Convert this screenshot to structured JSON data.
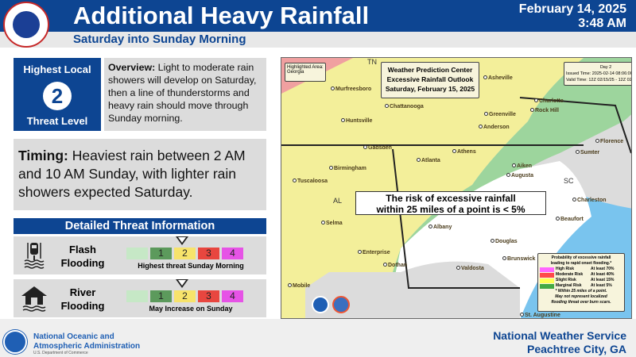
{
  "header": {
    "title": "Additional Heavy Rainfall",
    "subtitle": "Saturday into Sunday Morning",
    "date": "February 14, 2025",
    "time": "3:48 AM",
    "logo_text": "NATIONAL WEATHER SERVICE"
  },
  "threat": {
    "top": "Highest Local",
    "level": "2",
    "bottom": "Threat Level"
  },
  "overview": {
    "label": "Overview:",
    "text": " Light to moderate rain showers will develop on Saturday, then a line of thunderstorms and heavy rain should move through Sunday morning."
  },
  "timing": {
    "label": "Timing:",
    "text": " Heaviest rain between 2 AM and 10 AM Sunday, with lighter rain showers expected Saturday."
  },
  "detail": {
    "title": "Detailed Threat Information",
    "scale": [
      {
        "label": "",
        "color": "#c6e8c6"
      },
      {
        "label": "1",
        "color": "#5c9a5c"
      },
      {
        "label": "2",
        "color": "#f7e36b"
      },
      {
        "label": "3",
        "color": "#e8463f"
      },
      {
        "label": "4",
        "color": "#e653e6"
      }
    ],
    "rows": [
      {
        "name": "Flash Flooding",
        "line1": "Flash",
        "line2": "Flooding",
        "level": 2,
        "caption": "Highest threat Sunday Morning",
        "icon": "car-flood-icon"
      },
      {
        "name": "River Flooding",
        "line1": "River",
        "line2": "Flooding",
        "level": 2,
        "caption": "May Increase on Sunday",
        "icon": "house-flood-icon"
      }
    ]
  },
  "map": {
    "highlight_label": "Highlighted Area:",
    "highlight_value": "Georgia",
    "title1": "Weather Prediction Center",
    "title2": "Excessive Rainfall Outlook",
    "title3": "Saturday, February 15, 2025",
    "day": "Day 2",
    "issued": "Issued Time: 2025-02-14 08:06:00",
    "valid": "Valid Time: 12Z 02/15/25 - 12Z 02/16/25",
    "callout1": "The risk of excessive rainfall",
    "callout2": "within 25 miles of a point is < 5%",
    "states": [
      "TN",
      "SC",
      "AL"
    ],
    "cities": [
      "Murfreesboro",
      "Asheville",
      "Charlotte",
      "Rock Hill",
      "Chattanooga",
      "Huntsville",
      "Greenville",
      "Anderson",
      "Gadsden",
      "Athens",
      "Atlanta",
      "Birmingham",
      "Tuscaloosa",
      "Aiken",
      "Augusta",
      "Florence",
      "Sumter",
      "Charleston",
      "Beaufort",
      "Selma",
      "Albany",
      "Valdosta",
      "Enterprise",
      "Dothan",
      "Mobile",
      "Douglas",
      "Brunswick",
      "St. Augustine"
    ],
    "legend": {
      "title1": "Probability of excessive rainfall",
      "title2": "leading to rapid onset flooding.*",
      "items": [
        {
          "name": "High Risk",
          "value": "At least 70%",
          "color": "#ff66ff"
        },
        {
          "name": "Moderate Risk",
          "value": "At least 40%",
          "color": "#ff4a4a"
        },
        {
          "name": "Slight Risk",
          "value": "At least 15%",
          "color": "#ffff55"
        },
        {
          "name": "Marginal Risk",
          "value": "At least  5%",
          "color": "#44aa44"
        }
      ],
      "note1": "* Within 25 miles of a point.",
      "note2": "May not represent localized",
      "note3": "flooding threat over burn scars."
    }
  },
  "footer": {
    "noaa1": "National Oceanic and",
    "noaa2": "Atmospheric Administration",
    "noaa3": "U.S. Department of Commerce",
    "noaa_logo": "NOAA",
    "nws1": "National Weather Service",
    "nws2": "Peachtree City, GA"
  }
}
